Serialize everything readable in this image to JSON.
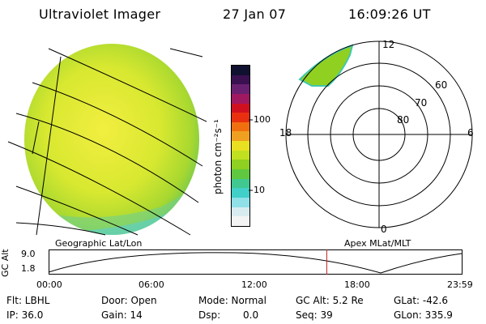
{
  "header": {
    "instrument": "Ultraviolet Imager",
    "date": "27 Jan 07",
    "time": "16:09:26 UT"
  },
  "colorbar": {
    "label": "photon cm⁻²s⁻¹",
    "ticks": [
      "100",
      "10"
    ],
    "colors": [
      "#101030",
      "#3a1050",
      "#6a2070",
      "#a01860",
      "#d01020",
      "#e83010",
      "#f07010",
      "#f0a020",
      "#e8e020",
      "#c0e020",
      "#90d020",
      "#60c840",
      "#40c890",
      "#40d0c8",
      "#90e0e8",
      "#d8ecf0",
      "#f4f4f4"
    ]
  },
  "polar": {
    "mlt_labels": {
      "top": "12",
      "bottom": "0",
      "left": "18",
      "right": "6"
    },
    "lat_labels": [
      "60",
      "70",
      "80"
    ]
  },
  "map_labels": {
    "left": "Geographic Lat/Lon",
    "right": "Apex MLat/MLT"
  },
  "alt_plot": {
    "ylabel": "GC Alt",
    "y_ticks": [
      "9.0",
      "1.8"
    ],
    "x_ticks": [
      "00:00",
      "06:00",
      "12:00",
      "18:00",
      "23:59"
    ],
    "current_marker_hours": 16.16
  },
  "status": {
    "flt": "Flt: LBHL",
    "ip": "IP: 36.0",
    "door": "Door: Open",
    "gain": "Gain: 14",
    "mode": "Mode: Normal",
    "dsp_label": "Dsp:",
    "dsp_value": "0.0",
    "gc_alt": "GC Alt: 5.2 Re",
    "seq": "Seq: 39",
    "glat": "GLat: -42.6",
    "glon": "GLon: 335.9"
  }
}
